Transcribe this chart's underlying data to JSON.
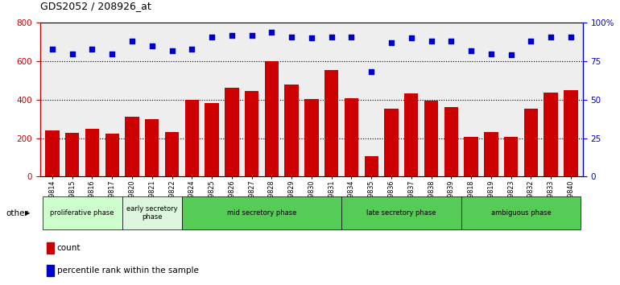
{
  "title": "GDS2052 / 208926_at",
  "samples": [
    "GSM109814",
    "GSM109815",
    "GSM109816",
    "GSM109817",
    "GSM109820",
    "GSM109821",
    "GSM109822",
    "GSM109824",
    "GSM109825",
    "GSM109826",
    "GSM109827",
    "GSM109828",
    "GSM109829",
    "GSM109830",
    "GSM109831",
    "GSM109834",
    "GSM109835",
    "GSM109836",
    "GSM109837",
    "GSM109838",
    "GSM109839",
    "GSM109818",
    "GSM109819",
    "GSM109823",
    "GSM109832",
    "GSM109833",
    "GSM109840"
  ],
  "counts": [
    240,
    228,
    248,
    225,
    310,
    300,
    232,
    400,
    383,
    462,
    445,
    600,
    480,
    405,
    555,
    410,
    105,
    355,
    432,
    395,
    360,
    208,
    232,
    205,
    355,
    438,
    450
  ],
  "percentiles": [
    83,
    80,
    83,
    80,
    88,
    85,
    82,
    83,
    91,
    92,
    92,
    94,
    91,
    90,
    91,
    91,
    68,
    87,
    90,
    88,
    88,
    82,
    80,
    79,
    88,
    91,
    91
  ],
  "bar_color": "#cc0000",
  "dot_color": "#0000cc",
  "ylim_left": [
    0,
    800
  ],
  "ylim_right": [
    0,
    100
  ],
  "yticks_left": [
    0,
    200,
    400,
    600,
    800
  ],
  "yticks_right": [
    0,
    25,
    50,
    75,
    100
  ],
  "yticklabels_right": [
    "0",
    "25",
    "50",
    "75",
    "100%"
  ],
  "legend_count_label": "count",
  "legend_pct_label": "percentile rank within the sample",
  "other_label": "other",
  "label_color_left": "#cc0000",
  "label_color_right": "#0000cc",
  "groups": [
    {
      "label": "proliferative phase",
      "start": 0,
      "end": 4,
      "color": "#ccffcc"
    },
    {
      "label": "early secretory\nphase",
      "start": 4,
      "end": 7,
      "color": "#ddf5dd"
    },
    {
      "label": "mid secretory phase",
      "start": 7,
      "end": 15,
      "color": "#55cc55"
    },
    {
      "label": "late secretory phase",
      "start": 15,
      "end": 21,
      "color": "#55cc55"
    },
    {
      "label": "ambiguous phase",
      "start": 21,
      "end": 27,
      "color": "#55cc55"
    }
  ]
}
